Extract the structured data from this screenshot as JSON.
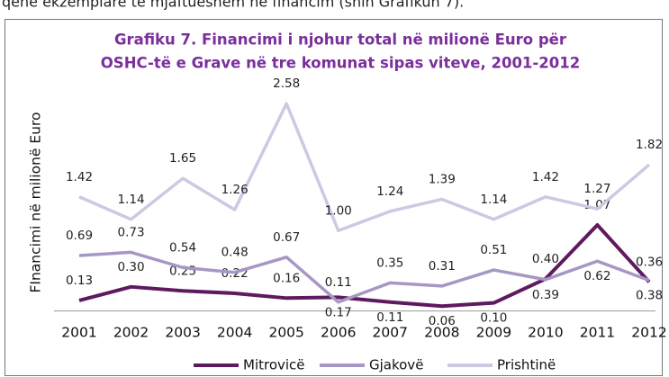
{
  "intro_text": "qenë ekzemplarë të mjaftueshëm në financim (shih Grafikun 7).",
  "chart_data": {
    "type": "line",
    "title_lines": [
      "Grafiku 7. Financimi i njohur total në milionë Euro për",
      "OSHC-të e Grave në tre komunat sipas viteve, 2001-2012"
    ],
    "y_axis_label": "FInancimi në milionë Euro",
    "categories": [
      "2001",
      "2002",
      "2003",
      "2004",
      "2005",
      "2006",
      "2007",
      "2008",
      "2009",
      "2010",
      "2011",
      "2012"
    ],
    "ylim": [
      0,
      2.75
    ],
    "legend": "bottom",
    "series": [
      {
        "name": "Mitrovicë",
        "color": "#5e1a5e",
        "values": [
          0.13,
          0.3,
          0.25,
          0.22,
          0.16,
          0.17,
          0.11,
          0.06,
          0.1,
          0.4,
          1.07,
          0.36
        ]
      },
      {
        "name": "Gjakovë",
        "color": "#a697c4",
        "values": [
          0.69,
          0.73,
          0.54,
          0.48,
          0.67,
          0.11,
          0.35,
          0.31,
          0.51,
          0.39,
          0.62,
          0.38
        ]
      },
      {
        "name": "Prishtinë",
        "color": "#d0c8e2",
        "values": [
          1.42,
          1.14,
          1.65,
          1.26,
          2.58,
          1.0,
          1.24,
          1.39,
          1.14,
          1.42,
          1.27,
          1.82
        ]
      }
    ]
  }
}
